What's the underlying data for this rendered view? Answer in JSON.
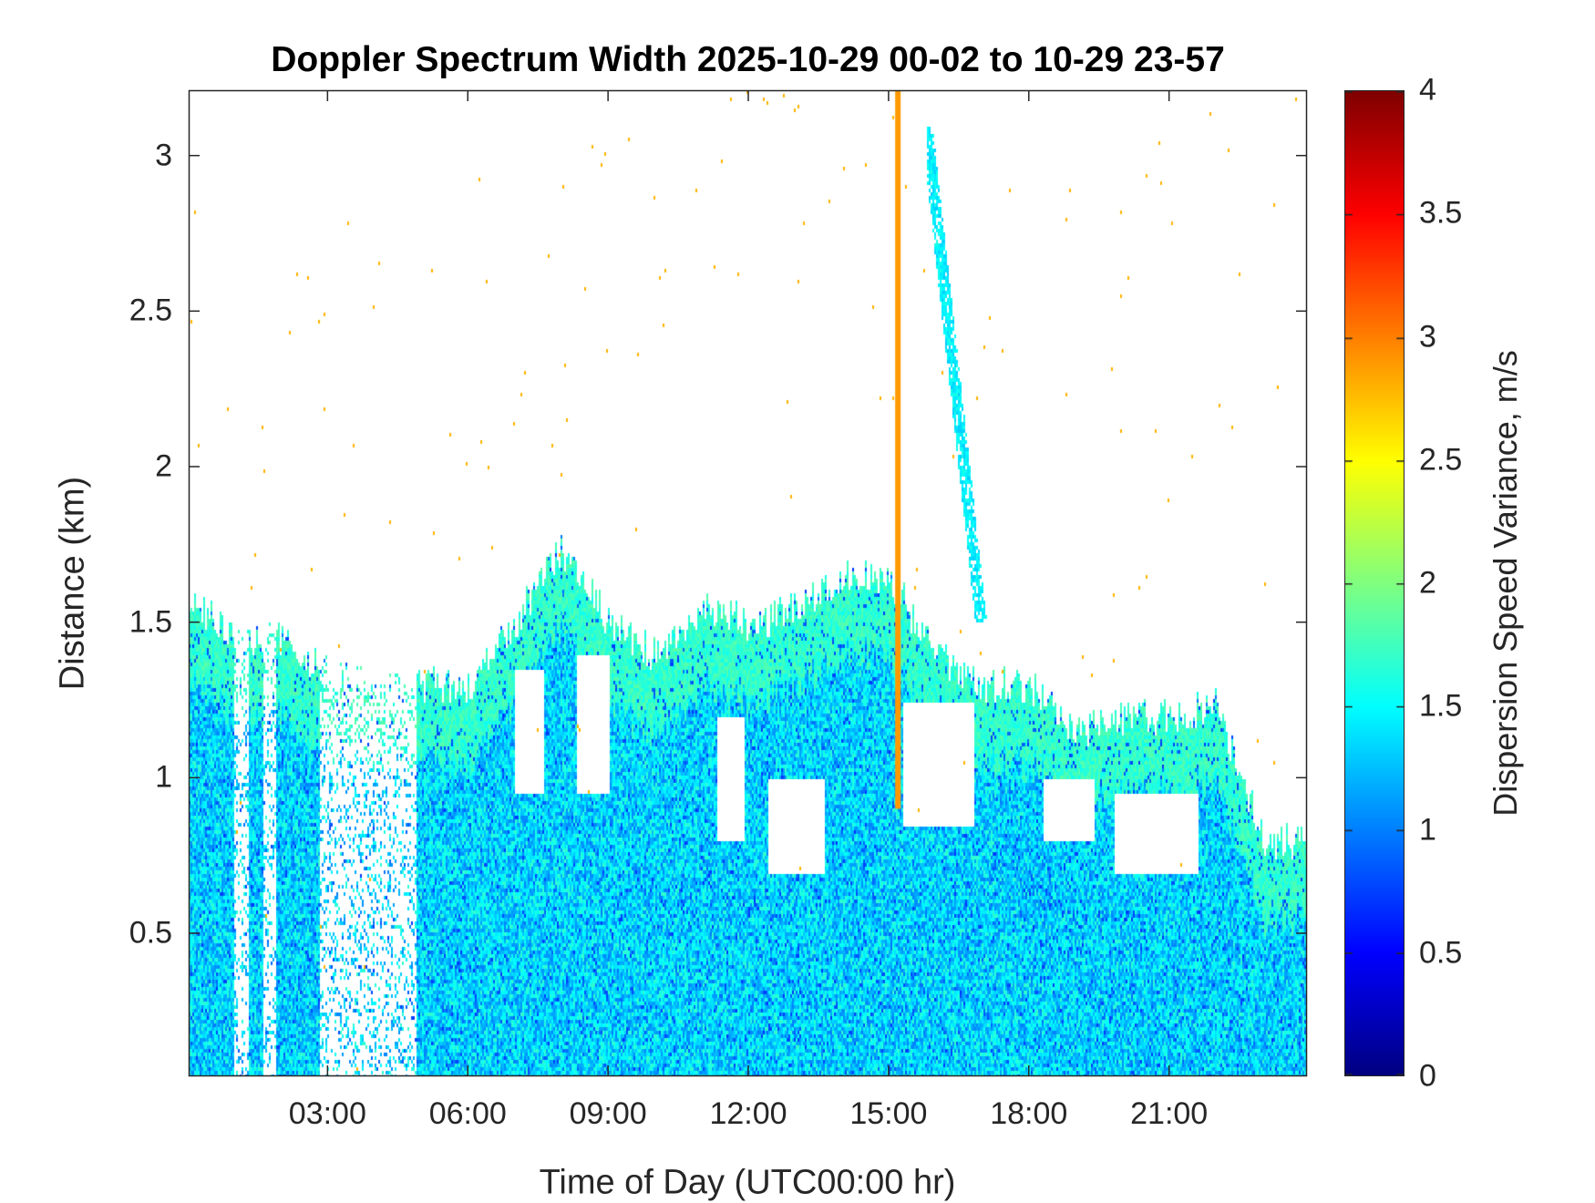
{
  "chart_data": {
    "type": "heatmap",
    "title": "Doppler Spectrum Width 2025-10-29 00-02 to 10-29 23-57",
    "xlabel": "Time of Day (UTC00:00 hr)",
    "ylabel": "Distance (km)",
    "xlim": [
      0.03,
      23.95
    ],
    "ylim": [
      0.04,
      3.21
    ],
    "x_ticks": [
      3,
      6,
      9,
      12,
      15,
      18,
      21
    ],
    "x_tick_labels": [
      "03:00",
      "06:00",
      "09:00",
      "12:00",
      "15:00",
      "18:00",
      "21:00"
    ],
    "y_ticks": [
      0.5,
      1,
      1.5,
      2,
      2.5,
      3
    ],
    "y_tick_labels": [
      "0.5",
      "1",
      "1.5",
      "2",
      "2.5",
      "3"
    ],
    "colorbar": {
      "label": "Dispersion Speed Variance, m/s",
      "colormap": "jet",
      "clim": [
        0,
        4
      ],
      "ticks": [
        0,
        0.5,
        1,
        1.5,
        2,
        2.5,
        3,
        3.5,
        4
      ],
      "tick_labels": [
        "0",
        "0.5",
        "1",
        "1.5",
        "2",
        "2.5",
        "3",
        "3.5",
        "4"
      ]
    },
    "typical_value": 1.35,
    "value_spread": 0.35,
    "echo_top_hours": [
      0,
      1,
      2,
      3,
      4,
      5,
      6,
      7,
      8,
      9,
      10,
      11,
      12,
      13,
      14,
      15,
      16,
      17,
      18,
      19,
      20,
      21,
      22,
      23,
      24
    ],
    "echo_top_km": [
      1.6,
      1.45,
      1.45,
      1.35,
      1.3,
      1.3,
      1.3,
      1.5,
      1.75,
      1.5,
      1.4,
      1.55,
      1.5,
      1.55,
      1.65,
      1.65,
      1.4,
      1.3,
      1.3,
      1.15,
      1.2,
      1.2,
      1.25,
      0.8,
      0.8
    ],
    "sparse_intervals_hours": [
      [
        1.0,
        1.3
      ],
      [
        1.6,
        1.9
      ],
      [
        2.8,
        4.9
      ]
    ],
    "clear_patches": [
      {
        "t": [
          7.0,
          7.6
        ],
        "km": [
          0.95,
          1.35
        ]
      },
      {
        "t": [
          8.3,
          9.0
        ],
        "km": [
          0.95,
          1.4
        ]
      },
      {
        "t": [
          11.3,
          11.9
        ],
        "km": [
          0.8,
          1.2
        ]
      },
      {
        "t": [
          12.4,
          13.6
        ],
        "km": [
          0.7,
          1.0
        ]
      },
      {
        "t": [
          15.3,
          16.8
        ],
        "km": [
          0.85,
          1.25
        ]
      },
      {
        "t": [
          18.3,
          19.4
        ],
        "km": [
          0.8,
          1.0
        ]
      },
      {
        "t": [
          19.8,
          21.6
        ],
        "km": [
          0.7,
          0.95
        ]
      }
    ],
    "high_value_streak": {
      "hour": 15.2,
      "km": [
        0.9,
        3.21
      ],
      "value": 2.9
    },
    "upper_plume": {
      "hours": [
        15.8,
        17.1
      ],
      "km": [
        1.5,
        3.1
      ]
    }
  }
}
